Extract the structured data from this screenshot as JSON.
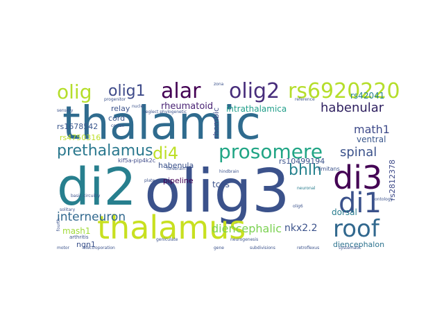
{
  "words": {
    "thalamic": "thalamic",
    "olig3": "olig3",
    "di2": "di2",
    "thalamus": "thalamus",
    "di3": "di3",
    "di1": "di1",
    "prosomere": "prosomere",
    "roof": "roof",
    "olig2": "olig2",
    "rs6920220": "rs6920220",
    "alar": "alar",
    "olig": "olig",
    "olig1": "olig1",
    "bhlh": "bhlh",
    "di4": "di4",
    "prethalamus": "prethalamus",
    "habenular": "habenular",
    "interneuron": "interneuron",
    "diencephalic": "diencephalic",
    "spinal": "spinal",
    "math1": "math1",
    "rheumatoid": "rheumatoid",
    "rs42041": "rs42041",
    "intrathalamica": "intrathalamica",
    "ventral": "ventral",
    "dorsal": "dorsal",
    "nkx22": "nkx2.2",
    "diencephalon": "diencephalon",
    "mash1": "mash1",
    "ngn1": "ngn1",
    "rs2812378": "rs2812378",
    "rs4750316": "rs4750316",
    "rs1678542": "rs1678542",
    "cord": "cord",
    "relay": "relay",
    "pipeline": "pipeline",
    "habenula": "habenula",
    "tcas": "tcas",
    "rs10499194": "rs10499194",
    "rhombic": "rhombic",
    "kif5a": "kif5a-pip4k2c",
    "neuronal": "neuronal",
    "limitans": "limitans",
    "arthritis": "arthritis",
    "electroporation": "electroporation",
    "subdivisions": "subdivisions",
    "retroflexus": "retroflexus",
    "systematic": "systematic",
    "neurogenesis": "neurogenesis",
    "olig6": "olig6",
    "geniculate": "geniculate",
    "progenitor": "progenitor",
    "nuclei": "nuclei",
    "reference": "reference",
    "cortex": "cortex",
    "hindbrain": "hindbrain",
    "forebrain": "forebrain",
    "basic": "basic",
    "motor": "motor",
    "plate": "plate",
    "zona": "zona",
    "neglect": "neglect phylogenetic",
    "sensory": "sensory",
    "ontology": "ontology",
    "gene": "gene",
    "fourth": "fourth",
    "circuitry": "circuitry",
    "solitary": "solitary"
  }
}
